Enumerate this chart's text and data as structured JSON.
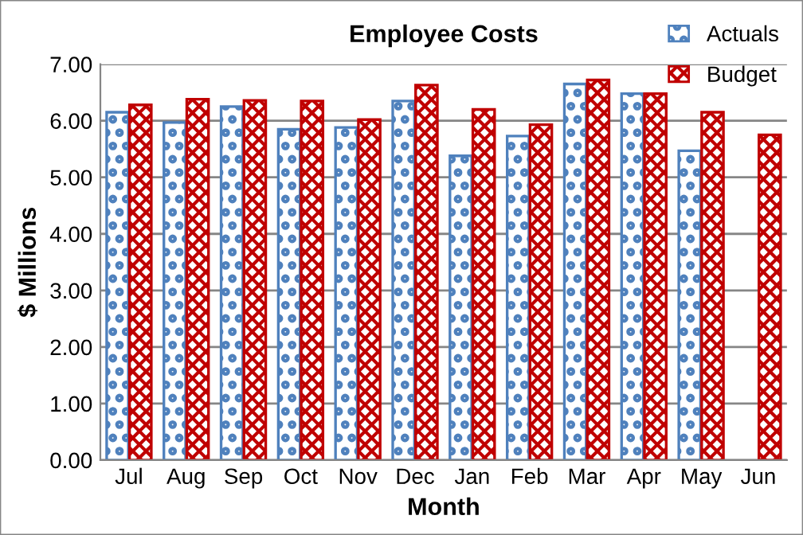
{
  "chart_data": {
    "type": "bar",
    "title": "Employee Costs",
    "xlabel": "Month",
    "ylabel": "$ Millions",
    "categories": [
      "Jul",
      "Aug",
      "Sep",
      "Oct",
      "Nov",
      "Dec",
      "Jan",
      "Feb",
      "Mar",
      "Apr",
      "May",
      "Jun"
    ],
    "series": [
      {
        "name": "Actuals",
        "color": "#4f81bd",
        "values": [
          6.15,
          5.97,
          6.25,
          5.85,
          5.88,
          6.35,
          5.38,
          5.73,
          6.65,
          6.48,
          5.47,
          null
        ]
      },
      {
        "name": "Budget",
        "color": "#c00000",
        "values": [
          6.28,
          6.38,
          6.36,
          6.35,
          6.02,
          6.63,
          6.2,
          5.93,
          6.72,
          6.48,
          6.15,
          5.75
        ]
      }
    ],
    "ylim": [
      0,
      7
    ],
    "yticks": [
      {
        "value": 0,
        "label": "0.00"
      },
      {
        "value": 1,
        "label": "1.00"
      },
      {
        "value": 2,
        "label": "2.00"
      },
      {
        "value": 3,
        "label": "3.00"
      },
      {
        "value": 4,
        "label": "4.00"
      },
      {
        "value": 5,
        "label": "5.00"
      },
      {
        "value": 6,
        "label": "6.00"
      },
      {
        "value": 7,
        "label": "7.00"
      }
    ],
    "grid": "y",
    "legend": "top right"
  }
}
